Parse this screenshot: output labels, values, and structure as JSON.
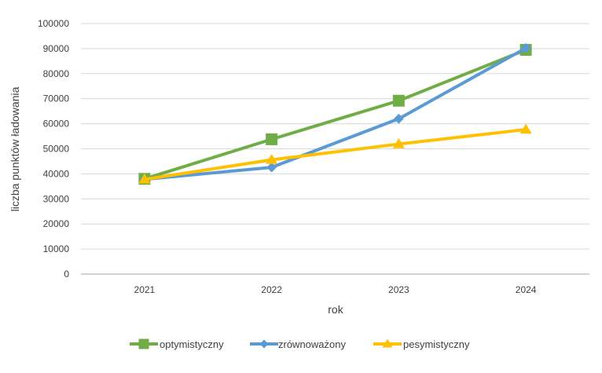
{
  "chart_data": {
    "type": "line",
    "categories": [
      "2021",
      "2022",
      "2023",
      "2024"
    ],
    "series": [
      {
        "name": "optymistyczny",
        "values": [
          38000,
          53800,
          69200,
          89500
        ],
        "color": "#70AD47",
        "marker": "square"
      },
      {
        "name": "zrównoważony",
        "values": [
          37800,
          42600,
          62000,
          90200
        ],
        "color": "#5B9BD5",
        "marker": "diamond"
      },
      {
        "name": "pesymistyczny",
        "values": [
          37800,
          45600,
          51900,
          57700
        ],
        "color": "#FFC000",
        "marker": "triangle"
      }
    ],
    "title": "",
    "xlabel": "rok",
    "ylabel": "liczba punktów ładowania",
    "ylim": [
      0,
      100000
    ],
    "yticks": [
      "0",
      "10000",
      "20000",
      "30000",
      "40000",
      "50000",
      "60000",
      "70000",
      "80000",
      "90000",
      "100000"
    ],
    "grid": true,
    "legend_position": "bottom"
  }
}
